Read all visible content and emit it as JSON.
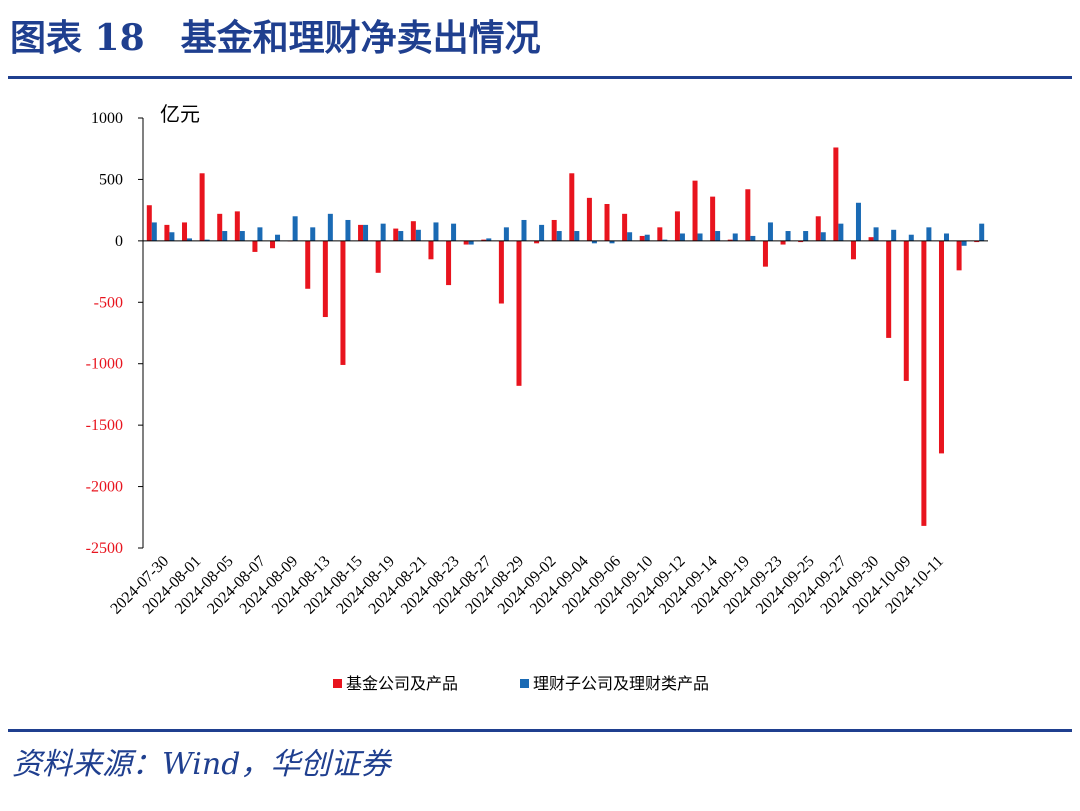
{
  "header": {
    "title": "图表 18　基金和理财净卖出情况"
  },
  "footer": {
    "source": "资料来源：Wind，华创证券"
  },
  "colors": {
    "series_fund": "#e8141e",
    "series_wealth": "#1a6ab4",
    "accent": "#1f3f8f",
    "negative_tick": "#e8141e"
  },
  "chart_data": {
    "type": "bar",
    "unit": "亿元",
    "ylim": [
      -2500,
      1000
    ],
    "yticks": [
      1000,
      500,
      0,
      -500,
      -1000,
      -1500,
      -2000,
      -2500
    ],
    "grid": false,
    "legend_position": "bottom",
    "x_tick_labels": [
      "2024-07-30",
      "2024-08-01",
      "2024-08-05",
      "2024-08-07",
      "2024-08-09",
      "2024-08-13",
      "2024-08-15",
      "2024-08-19",
      "2024-08-21",
      "2024-08-23",
      "2024-08-27",
      "2024-08-29",
      "2024-09-02",
      "2024-09-04",
      "2024-09-06",
      "2024-09-10",
      "2024-09-12",
      "2024-09-14",
      "2024-09-19",
      "2024-09-23",
      "2024-09-25",
      "2024-09-27",
      "2024-09-30",
      "2024-10-09",
      "2024-10-11"
    ],
    "series": [
      {
        "name": "基金公司及产品",
        "values": [
          290,
          130,
          150,
          550,
          220,
          240,
          -90,
          -60,
          0,
          -390,
          -620,
          -1010,
          130,
          -260,
          100,
          160,
          -150,
          -360,
          -30,
          10,
          -510,
          -1180,
          -20,
          170,
          550,
          350,
          300,
          220,
          40,
          110,
          240,
          490,
          360,
          10,
          420,
          -210,
          -30,
          -10,
          200,
          760,
          -150,
          30,
          -790,
          -1140,
          -2320,
          -1730,
          -240,
          -10
        ]
      },
      {
        "name": "理财子公司及理财类产品",
        "values": [
          150,
          70,
          20,
          10,
          80,
          80,
          110,
          50,
          200,
          110,
          220,
          170,
          130,
          140,
          80,
          90,
          150,
          140,
          -30,
          20,
          110,
          170,
          130,
          80,
          80,
          -20,
          -20,
          70,
          50,
          10,
          60,
          60,
          80,
          60,
          40,
          150,
          80,
          80,
          70,
          140,
          310,
          110,
          90,
          50,
          110,
          60,
          -40,
          140
        ]
      }
    ]
  }
}
